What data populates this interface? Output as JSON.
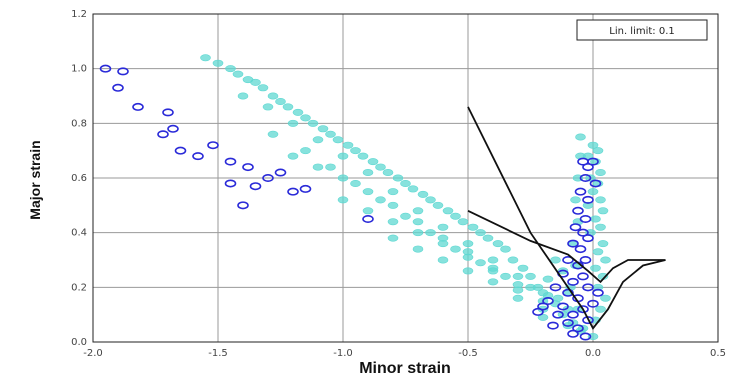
{
  "chart_data": {
    "type": "scatter",
    "xlabel": "Minor strain",
    "ylabel": "Major strain",
    "xlim": [
      -2.0,
      0.5
    ],
    "ylim": [
      0.0,
      1.2
    ],
    "x_ticks": [
      "-2.0",
      "-1.5",
      "-1.0",
      "-0.5",
      "0.0",
      "0.5"
    ],
    "y_ticks": [
      "0.0",
      "0.2",
      "0.4",
      "0.6",
      "0.8",
      "1.0",
      "1.2"
    ],
    "grid": true,
    "legend_text": "Lin. limit: 0.1",
    "legend_position": "top-right",
    "colors": {
      "cyan": "#5fd8d2",
      "blue": "#2a2ad8",
      "curve": "#111111",
      "grid": "#9a9a9a"
    },
    "series": [
      {
        "color": "cyan",
        "points": [
          [
            -1.55,
            1.04
          ],
          [
            -1.5,
            1.02
          ],
          [
            -1.45,
            1.0
          ],
          [
            -1.42,
            0.98
          ],
          [
            -1.38,
            0.96
          ],
          [
            -1.35,
            0.95
          ],
          [
            -1.32,
            0.93
          ],
          [
            -1.28,
            0.9
          ],
          [
            -1.25,
            0.88
          ],
          [
            -1.22,
            0.86
          ],
          [
            -1.18,
            0.84
          ],
          [
            -1.15,
            0.82
          ],
          [
            -1.12,
            0.8
          ],
          [
            -1.08,
            0.78
          ],
          [
            -1.05,
            0.76
          ],
          [
            -1.02,
            0.74
          ],
          [
            -0.98,
            0.72
          ],
          [
            -0.95,
            0.7
          ],
          [
            -0.92,
            0.68
          ],
          [
            -0.88,
            0.66
          ],
          [
            -0.85,
            0.64
          ],
          [
            -0.82,
            0.62
          ],
          [
            -0.78,
            0.6
          ],
          [
            -0.75,
            0.58
          ],
          [
            -0.72,
            0.56
          ],
          [
            -0.68,
            0.54
          ],
          [
            -0.65,
            0.52
          ],
          [
            -0.62,
            0.5
          ],
          [
            -0.58,
            0.48
          ],
          [
            -0.55,
            0.46
          ],
          [
            -0.52,
            0.44
          ],
          [
            -0.48,
            0.42
          ],
          [
            -0.45,
            0.4
          ],
          [
            -0.42,
            0.38
          ],
          [
            -0.38,
            0.36
          ],
          [
            -0.35,
            0.34
          ],
          [
            -0.32,
            0.3
          ],
          [
            -0.28,
            0.27
          ],
          [
            -0.25,
            0.24
          ],
          [
            -0.22,
            0.2
          ],
          [
            -0.18,
            0.17
          ],
          [
            -0.15,
            0.14
          ],
          [
            -0.12,
            0.1
          ],
          [
            -0.08,
            0.07
          ],
          [
            -0.05,
            0.04
          ],
          [
            -1.4,
            0.9
          ],
          [
            -1.3,
            0.86
          ],
          [
            -1.2,
            0.8
          ],
          [
            -1.1,
            0.74
          ],
          [
            -1.0,
            0.68
          ],
          [
            -0.9,
            0.62
          ],
          [
            -0.8,
            0.55
          ],
          [
            -0.7,
            0.48
          ],
          [
            -0.6,
            0.42
          ],
          [
            -0.5,
            0.36
          ],
          [
            -0.4,
            0.3
          ],
          [
            -0.3,
            0.24
          ],
          [
            -0.2,
            0.18
          ],
          [
            -0.1,
            0.12
          ],
          [
            -1.28,
            0.76
          ],
          [
            -1.15,
            0.7
          ],
          [
            -1.05,
            0.64
          ],
          [
            -0.95,
            0.58
          ],
          [
            -0.85,
            0.52
          ],
          [
            -0.75,
            0.46
          ],
          [
            -0.65,
            0.4
          ],
          [
            -0.55,
            0.34
          ],
          [
            -0.45,
            0.29
          ],
          [
            -0.35,
            0.24
          ],
          [
            -0.25,
            0.2
          ],
          [
            -1.2,
            0.68
          ],
          [
            -1.1,
            0.64
          ],
          [
            -1.0,
            0.6
          ],
          [
            -0.9,
            0.55
          ],
          [
            -0.8,
            0.5
          ],
          [
            -0.7,
            0.44
          ],
          [
            -0.6,
            0.38
          ],
          [
            -0.5,
            0.33
          ],
          [
            -0.4,
            0.27
          ],
          [
            -0.3,
            0.21
          ],
          [
            -0.2,
            0.15
          ],
          [
            -1.0,
            0.52
          ],
          [
            -0.9,
            0.48
          ],
          [
            -0.8,
            0.44
          ],
          [
            -0.7,
            0.4
          ],
          [
            -0.6,
            0.36
          ],
          [
            -0.5,
            0.31
          ],
          [
            -0.4,
            0.26
          ],
          [
            -0.3,
            0.19
          ],
          [
            -0.2,
            0.12
          ],
          [
            -0.1,
            0.06
          ],
          [
            -0.8,
            0.38
          ],
          [
            -0.7,
            0.34
          ],
          [
            -0.6,
            0.3
          ],
          [
            -0.5,
            0.26
          ],
          [
            -0.4,
            0.22
          ],
          [
            -0.3,
            0.16
          ],
          [
            -0.2,
            0.09
          ],
          [
            -0.05,
            0.75
          ],
          [
            0.0,
            0.72
          ],
          [
            0.02,
            0.7
          ],
          [
            -0.02,
            0.68
          ],
          [
            0.01,
            0.66
          ],
          [
            0.03,
            0.62
          ],
          [
            -0.01,
            0.6
          ],
          [
            0.02,
            0.58
          ],
          [
            0.0,
            0.55
          ],
          [
            0.03,
            0.52
          ],
          [
            -0.02,
            0.5
          ],
          [
            0.04,
            0.48
          ],
          [
            0.01,
            0.45
          ],
          [
            0.03,
            0.42
          ],
          [
            -0.01,
            0.4
          ],
          [
            0.04,
            0.36
          ],
          [
            0.02,
            0.33
          ],
          [
            0.05,
            0.3
          ],
          [
            0.01,
            0.27
          ],
          [
            0.04,
            0.24
          ],
          [
            0.02,
            0.2
          ],
          [
            0.05,
            0.16
          ],
          [
            0.03,
            0.12
          ],
          [
            0.01,
            0.08
          ],
          [
            -0.05,
            0.68
          ],
          [
            -0.06,
            0.6
          ],
          [
            -0.07,
            0.52
          ],
          [
            -0.06,
            0.44
          ],
          [
            -0.08,
            0.36
          ],
          [
            -0.07,
            0.28
          ],
          [
            -0.09,
            0.2
          ],
          [
            -0.06,
            0.12
          ],
          [
            -0.12,
            0.26
          ],
          [
            -0.15,
            0.3
          ],
          [
            -0.18,
            0.23
          ],
          [
            -0.1,
            0.18
          ],
          [
            -0.14,
            0.16
          ],
          [
            -0.04,
            0.05
          ],
          [
            0.0,
            0.02
          ]
        ]
      },
      {
        "color": "blue",
        "points": [
          [
            -1.95,
            1.0
          ],
          [
            -1.88,
            0.99
          ],
          [
            -1.9,
            0.93
          ],
          [
            -1.82,
            0.86
          ],
          [
            -1.7,
            0.84
          ],
          [
            -1.72,
            0.76
          ],
          [
            -1.68,
            0.78
          ],
          [
            -1.65,
            0.7
          ],
          [
            -1.58,
            0.68
          ],
          [
            -1.52,
            0.72
          ],
          [
            -1.45,
            0.66
          ],
          [
            -1.38,
            0.64
          ],
          [
            -1.35,
            0.57
          ],
          [
            -1.3,
            0.6
          ],
          [
            -1.25,
            0.62
          ],
          [
            -1.4,
            0.5
          ],
          [
            -1.2,
            0.55
          ],
          [
            -1.15,
            0.56
          ],
          [
            -1.45,
            0.58
          ],
          [
            -0.9,
            0.45
          ],
          [
            -0.04,
            0.66
          ],
          [
            -0.02,
            0.64
          ],
          [
            0.0,
            0.66
          ],
          [
            -0.03,
            0.6
          ],
          [
            0.01,
            0.58
          ],
          [
            -0.05,
            0.55
          ],
          [
            -0.02,
            0.52
          ],
          [
            -0.06,
            0.48
          ],
          [
            -0.03,
            0.45
          ],
          [
            -0.07,
            0.42
          ],
          [
            -0.04,
            0.4
          ],
          [
            -0.08,
            0.36
          ],
          [
            -0.05,
            0.34
          ],
          [
            -0.02,
            0.38
          ],
          [
            -0.1,
            0.3
          ],
          [
            -0.06,
            0.28
          ],
          [
            -0.03,
            0.3
          ],
          [
            -0.12,
            0.25
          ],
          [
            -0.08,
            0.22
          ],
          [
            -0.04,
            0.24
          ],
          [
            -0.15,
            0.2
          ],
          [
            -0.1,
            0.18
          ],
          [
            -0.06,
            0.16
          ],
          [
            -0.02,
            0.2
          ],
          [
            -0.18,
            0.15
          ],
          [
            -0.12,
            0.13
          ],
          [
            -0.08,
            0.1
          ],
          [
            -0.04,
            0.12
          ],
          [
            -0.2,
            0.13
          ],
          [
            -0.14,
            0.1
          ],
          [
            -0.1,
            0.07
          ],
          [
            -0.06,
            0.05
          ],
          [
            -0.02,
            0.08
          ],
          [
            0.0,
            0.14
          ],
          [
            0.02,
            0.18
          ],
          [
            -0.16,
            0.06
          ],
          [
            -0.22,
            0.11
          ],
          [
            -0.08,
            0.03
          ],
          [
            -0.03,
            0.02
          ]
        ]
      }
    ],
    "flc_curve": [
      [
        -0.5,
        0.86
      ],
      [
        -0.25,
        0.4
      ],
      [
        -0.04,
        0.12
      ],
      [
        0.0,
        0.05
      ],
      [
        0.06,
        0.12
      ],
      [
        0.12,
        0.22
      ],
      [
        0.2,
        0.28
      ],
      [
        0.29,
        0.3
      ],
      [
        0.24,
        0.3
      ],
      [
        0.14,
        0.3
      ],
      [
        0.08,
        0.27
      ],
      [
        0.03,
        0.22
      ],
      [
        -0.02,
        0.26
      ],
      [
        -0.1,
        0.32
      ],
      [
        -0.25,
        0.37
      ],
      [
        -0.5,
        0.48
      ]
    ]
  }
}
